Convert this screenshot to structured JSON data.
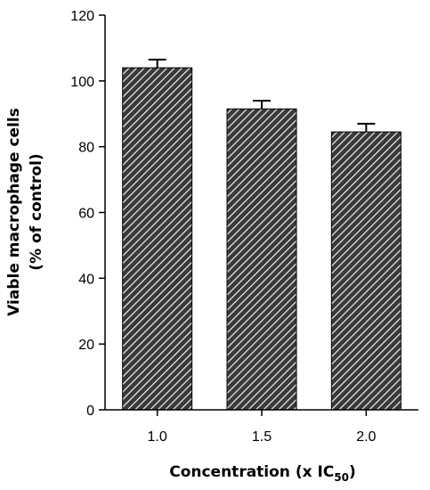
{
  "chart_data": {
    "type": "bar",
    "title": "",
    "xlabel": "Concentration (x IC",
    "xlabel_subscript": "50",
    "xlabel_suffix": ")",
    "ylabel_line1": "Viable macrophage cells",
    "ylabel_line2": "(% of control)",
    "categories": [
      "1.0",
      "1.5",
      "2.0"
    ],
    "values": [
      104,
      91.5,
      84.5
    ],
    "error": [
      2.5,
      2.5,
      2.5
    ],
    "ylim": [
      0,
      120
    ],
    "yticks": [
      "0",
      "20",
      "40",
      "60",
      "80",
      "100",
      "120"
    ],
    "bar_fill_pattern": "diagonal-hatch",
    "bar_colors": [
      "#3a3a3a",
      "#ffffff"
    ],
    "grid": false,
    "legend": "none"
  }
}
